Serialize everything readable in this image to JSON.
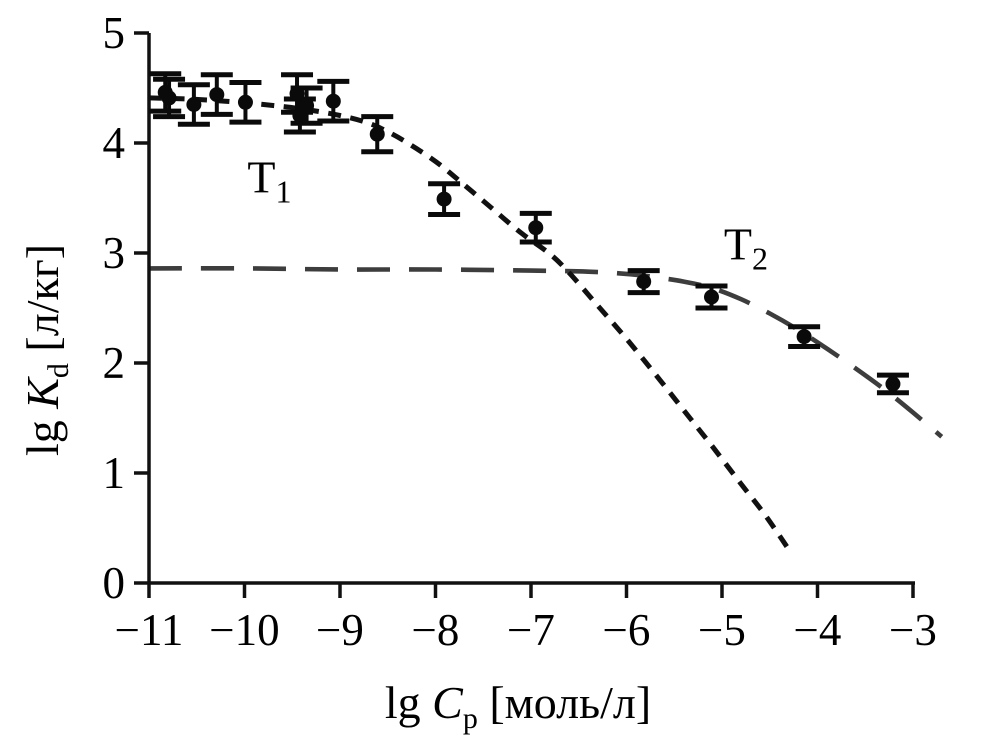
{
  "chart_data": {
    "type": "scatter",
    "title": "",
    "xlabel_parts": {
      "prefix": "lg ",
      "symbol": "C",
      "sub": "p",
      "suffix": " [моль/л]"
    },
    "ylabel_parts": {
      "prefix": "lg ",
      "symbol": "K",
      "sub": "d",
      "suffix": " [л/кг]"
    },
    "xlabel_plain": "lg Cp [моль/л]",
    "ylabel_plain": "lg Kd [л/кг]",
    "xlim": [
      -11,
      -3
    ],
    "ylim": [
      0,
      5
    ],
    "x_ticks": [
      -11,
      -10,
      -9,
      -8,
      -7,
      -6,
      -5,
      -4,
      -3
    ],
    "x_tick_labels": [
      "−11",
      "−10",
      "−9",
      "−8",
      "−7",
      "−6",
      "−5",
      "−4",
      "−3"
    ],
    "y_ticks": [
      0,
      1,
      2,
      3,
      4,
      5
    ],
    "y_tick_labels": [
      "0",
      "1",
      "2",
      "3",
      "4",
      "5"
    ],
    "grid": false,
    "legend_position": "inline-annotations",
    "annotations": [
      {
        "name": "annotation-t1",
        "label": "T",
        "sub": "1",
        "x": -9.97,
        "y": 3.55
      },
      {
        "name": "annotation-t2",
        "label": "T",
        "sub": "2",
        "x": -4.98,
        "y": 2.94
      }
    ],
    "points": [
      {
        "x": -10.83,
        "y": 4.46,
        "err": 0.17
      },
      {
        "x": -10.79,
        "y": 4.41,
        "err": 0.17
      },
      {
        "x": -10.53,
        "y": 4.35,
        "err": 0.18
      },
      {
        "x": -10.29,
        "y": 4.44,
        "err": 0.18
      },
      {
        "x": -9.99,
        "y": 4.37,
        "err": 0.18
      },
      {
        "x": -9.45,
        "y": 4.45,
        "err": 0.17
      },
      {
        "x": -9.42,
        "y": 4.25,
        "err": 0.15
      },
      {
        "x": -9.35,
        "y": 4.34,
        "err": 0.16
      },
      {
        "x": -9.07,
        "y": 4.38,
        "err": 0.18
      },
      {
        "x": -8.61,
        "y": 4.08,
        "err": 0.16
      },
      {
        "x": -7.91,
        "y": 3.49,
        "err": 0.14
      },
      {
        "x": -6.95,
        "y": 3.23,
        "err": 0.13
      },
      {
        "x": -5.82,
        "y": 2.74,
        "err": 0.1
      },
      {
        "x": -5.11,
        "y": 2.6,
        "err": 0.1
      },
      {
        "x": -4.14,
        "y": 2.24,
        "err": 0.09
      },
      {
        "x": -3.21,
        "y": 1.81,
        "err": 0.08
      }
    ],
    "series": [
      {
        "name": "curve-t2",
        "annotation": "T2",
        "style": "long-dash",
        "color": "#3d3d3d",
        "dash": [
          33,
          19
        ],
        "width": 4.6,
        "path": [
          [
            -11,
            2.86
          ],
          [
            -10,
            2.86
          ],
          [
            -9,
            2.85
          ],
          [
            -8,
            2.85
          ],
          [
            -7,
            2.84
          ],
          [
            -6.4,
            2.83
          ],
          [
            -6.0,
            2.81
          ],
          [
            -5.7,
            2.78
          ],
          [
            -5.4,
            2.74
          ],
          [
            -5.1,
            2.68
          ],
          [
            -4.8,
            2.58
          ],
          [
            -4.5,
            2.45
          ],
          [
            -4.2,
            2.3
          ],
          [
            -3.9,
            2.13
          ],
          [
            -3.6,
            1.95
          ],
          [
            -3.3,
            1.76
          ],
          [
            -3.0,
            1.55
          ],
          [
            -2.7,
            1.33
          ]
        ]
      },
      {
        "name": "curve-t1",
        "annotation": "T1",
        "style": "short-dash",
        "color": "#111111",
        "dash": [
          13,
          9.5
        ],
        "width": 5,
        "path": [
          [
            -11,
            4.41
          ],
          [
            -10.6,
            4.4
          ],
          [
            -10.2,
            4.38
          ],
          [
            -9.8,
            4.35
          ],
          [
            -9.4,
            4.31
          ],
          [
            -9.0,
            4.25
          ],
          [
            -8.7,
            4.18
          ],
          [
            -8.45,
            4.08
          ],
          [
            -8.2,
            3.95
          ],
          [
            -7.95,
            3.8
          ],
          [
            -7.7,
            3.62
          ],
          [
            -7.4,
            3.4
          ],
          [
            -7.1,
            3.18
          ],
          [
            -6.8,
            2.99
          ],
          [
            -6.6,
            2.82
          ],
          [
            -6.3,
            2.52
          ],
          [
            -6.0,
            2.22
          ],
          [
            -5.7,
            1.9
          ],
          [
            -5.4,
            1.57
          ],
          [
            -5.1,
            1.24
          ],
          [
            -4.8,
            0.9
          ],
          [
            -4.55,
            0.62
          ],
          [
            -4.32,
            0.33
          ]
        ]
      }
    ],
    "marker": {
      "shape": "filled-circle",
      "radius": 7.5,
      "color": "#0a0a0a",
      "errbar_line_width": 4,
      "errbar_cap_halfwidth": 16,
      "errbar_cap_thickness": 5
    },
    "colors": {
      "axis": "#111111",
      "background": "#ffffff",
      "t1_curve": "#111111",
      "t2_curve": "#3d3d3d",
      "marker": "#0a0a0a"
    },
    "tick_font_size": 45,
    "annotation_font_size": 46
  }
}
